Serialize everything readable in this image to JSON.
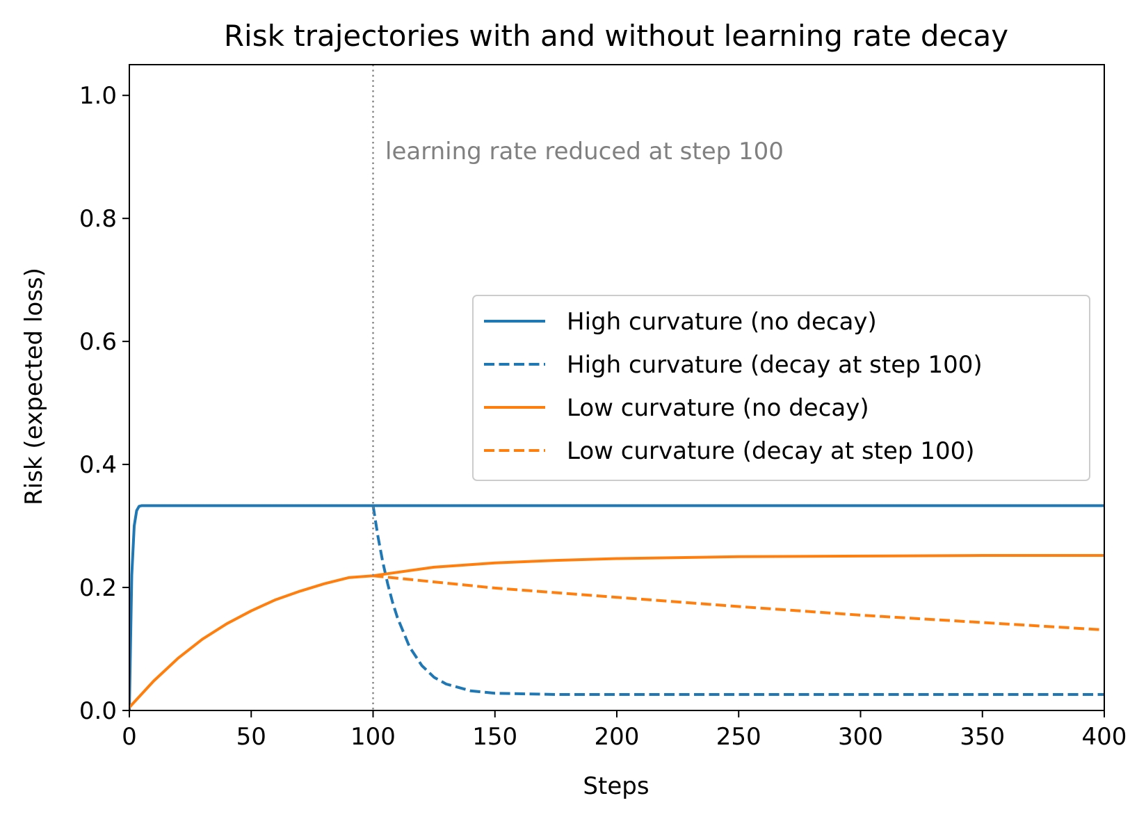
{
  "chart_data": {
    "type": "line",
    "title": "Risk trajectories with and without learning rate decay",
    "xlabel": "Steps",
    "ylabel": "Risk (expected loss)",
    "xlim": [
      0,
      400
    ],
    "ylim": [
      0,
      1.05
    ],
    "xticks": [
      0,
      50,
      100,
      150,
      200,
      250,
      300,
      350,
      400
    ],
    "yticks": [
      0.0,
      0.2,
      0.4,
      0.6,
      0.8,
      1.0
    ],
    "xtick_labels": [
      "0",
      "50",
      "100",
      "150",
      "200",
      "250",
      "300",
      "350",
      "400"
    ],
    "ytick_labels": [
      "0.0",
      "0.2",
      "0.4",
      "0.6",
      "0.8",
      "1.0"
    ],
    "grid": false,
    "legend_position": "center-right",
    "vline": {
      "x": 100,
      "color": "#808080",
      "style": "dotted"
    },
    "annotation": {
      "text": "learning rate reduced at step 100",
      "x": 105,
      "y": 0.91,
      "color": "#808080"
    },
    "series": [
      {
        "name": "High curvature (no decay)",
        "color": "#1f77b4",
        "style": "solid",
        "x": [
          0,
          1,
          2,
          3,
          4,
          5,
          10,
          50,
          100,
          150,
          200,
          250,
          300,
          350,
          400
        ],
        "y": [
          0.0,
          0.22,
          0.3,
          0.325,
          0.332,
          0.333,
          0.333,
          0.333,
          0.333,
          0.333,
          0.333,
          0.333,
          0.333,
          0.333,
          0.333
        ]
      },
      {
        "name": "High curvature (decay at step 100)",
        "color": "#1f77b4",
        "style": "dashed",
        "x": [
          100,
          102,
          104,
          106,
          108,
          110,
          115,
          120,
          125,
          130,
          140,
          150,
          175,
          200,
          250,
          300,
          350,
          400
        ],
        "y": [
          0.333,
          0.283,
          0.241,
          0.206,
          0.176,
          0.151,
          0.103,
          0.073,
          0.054,
          0.043,
          0.032,
          0.028,
          0.026,
          0.026,
          0.026,
          0.026,
          0.026,
          0.026
        ]
      },
      {
        "name": "Low curvature (no decay)",
        "color": "#ff7f0e",
        "style": "solid",
        "x": [
          0,
          10,
          20,
          30,
          40,
          50,
          60,
          70,
          80,
          90,
          100,
          125,
          150,
          175,
          200,
          250,
          300,
          350,
          400
        ],
        "y": [
          0.005,
          0.048,
          0.085,
          0.116,
          0.141,
          0.162,
          0.18,
          0.194,
          0.206,
          0.216,
          0.219,
          0.233,
          0.24,
          0.244,
          0.247,
          0.25,
          0.251,
          0.252,
          0.252
        ]
      },
      {
        "name": "Low curvature (decay at step 100)",
        "color": "#ff7f0e",
        "style": "dashed",
        "x": [
          100,
          150,
          200,
          250,
          300,
          350,
          400
        ],
        "y": [
          0.219,
          0.199,
          0.184,
          0.169,
          0.155,
          0.143,
          0.131
        ]
      }
    ]
  }
}
